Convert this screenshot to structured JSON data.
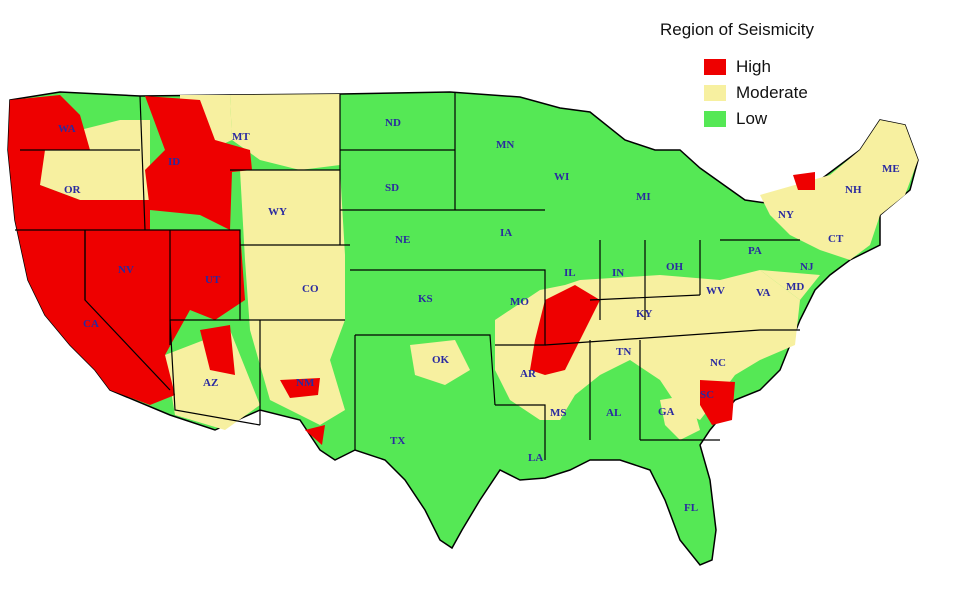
{
  "legend": {
    "title": "Region of Seismicity",
    "items": [
      {
        "label": "High",
        "color": "#ee0000"
      },
      {
        "label": "Moderate",
        "color": "#f7f0a0"
      },
      {
        "label": "Low",
        "color": "#55e855"
      }
    ]
  },
  "state_labels": [
    "WA",
    "OR",
    "ID",
    "MT",
    "WY",
    "NV",
    "CA",
    "UT",
    "CO",
    "AZ",
    "NM",
    "ND",
    "SD",
    "NE",
    "KS",
    "OK",
    "TX",
    "MN",
    "IA",
    "MO",
    "AR",
    "LA",
    "WI",
    "IL",
    "MS",
    "AL",
    "MI",
    "IN",
    "OH",
    "KY",
    "TN",
    "GA",
    "FL",
    "SC",
    "NC",
    "VA",
    "WV",
    "PA",
    "NY",
    "ME",
    "NH",
    "CT",
    "NJ",
    "MD"
  ]
}
